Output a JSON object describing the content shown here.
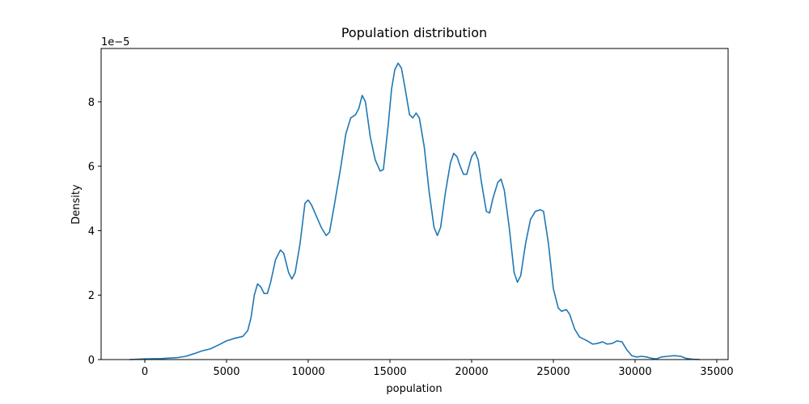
{
  "chart_data": {
    "type": "line",
    "title": "Population distribution",
    "x_label": "population",
    "y_label": "Density",
    "y_offset_label": "1e−5",
    "x": [
      -940,
      0,
      1000,
      2000,
      2500,
      3000,
      3500,
      4000,
      4500,
      5000,
      5500,
      6000,
      6300,
      6500,
      6700,
      6900,
      7100,
      7300,
      7500,
      7700,
      8000,
      8300,
      8500,
      8800,
      9000,
      9200,
      9500,
      9800,
      10000,
      10200,
      10500,
      10800,
      11100,
      11300,
      11600,
      12000,
      12300,
      12600,
      12900,
      13100,
      13300,
      13500,
      13800,
      14100,
      14400,
      14600,
      14900,
      15100,
      15300,
      15500,
      15700,
      15900,
      16200,
      16400,
      16600,
      16800,
      17100,
      17400,
      17700,
      17900,
      18100,
      18400,
      18700,
      18900,
      19100,
      19300,
      19500,
      19700,
      20000,
      20200,
      20400,
      20600,
      20900,
      21100,
      21300,
      21600,
      21800,
      22000,
      22300,
      22600,
      22800,
      23000,
      23300,
      23600,
      23900,
      24200,
      24400,
      24700,
      25000,
      25300,
      25500,
      25800,
      26000,
      26300,
      26600,
      27000,
      27400,
      27700,
      28000,
      28300,
      28600,
      28900,
      29200,
      29500,
      29800,
      30100,
      30400,
      30700,
      31000,
      31300,
      31600,
      32000,
      32400,
      32800,
      33100,
      33500,
      33960
    ],
    "series": [
      {
        "name": "population",
        "color": "#1f77b4",
        "values": [
          0,
          0.02,
          0.03,
          0.06,
          0.1,
          0.18,
          0.27,
          0.33,
          0.45,
          0.58,
          0.66,
          0.72,
          0.9,
          1.3,
          2.0,
          2.35,
          2.25,
          2.05,
          2.05,
          2.4,
          3.1,
          3.4,
          3.3,
          2.7,
          2.5,
          2.7,
          3.6,
          4.85,
          4.95,
          4.8,
          4.45,
          4.1,
          3.85,
          3.95,
          4.8,
          6.0,
          7.0,
          7.5,
          7.6,
          7.8,
          8.2,
          8.0,
          6.9,
          6.2,
          5.85,
          5.9,
          7.3,
          8.4,
          9.0,
          9.2,
          9.05,
          8.5,
          7.6,
          7.5,
          7.65,
          7.5,
          6.6,
          5.2,
          4.1,
          3.85,
          4.1,
          5.2,
          6.1,
          6.4,
          6.3,
          6.0,
          5.75,
          5.75,
          6.3,
          6.45,
          6.2,
          5.5,
          4.6,
          4.55,
          5.0,
          5.5,
          5.6,
          5.25,
          4.1,
          2.7,
          2.4,
          2.6,
          3.6,
          4.35,
          4.6,
          4.65,
          4.6,
          3.6,
          2.2,
          1.6,
          1.5,
          1.55,
          1.4,
          0.95,
          0.7,
          0.6,
          0.48,
          0.5,
          0.55,
          0.48,
          0.5,
          0.58,
          0.55,
          0.3,
          0.12,
          0.08,
          0.1,
          0.08,
          0.04,
          0.02,
          0.08,
          0.1,
          0.12,
          0.1,
          0.04,
          0.01,
          0
        ]
      }
    ],
    "xlim": [
      -2673,
      35693
    ],
    "xticks": [
      0,
      5000,
      10000,
      15000,
      20000,
      25000,
      30000,
      35000
    ],
    "ylim": [
      0,
      9.655
    ],
    "yticks": [
      0,
      2,
      4,
      6,
      8
    ],
    "grid": false
  }
}
